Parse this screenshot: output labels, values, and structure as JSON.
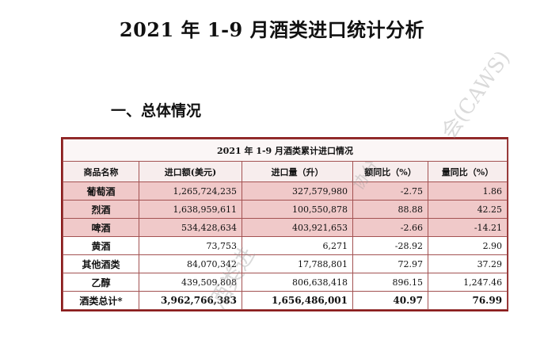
{
  "page": {
    "title": "2021 年 1-9 月酒类进口统计分析",
    "section_heading": "一、总体情况"
  },
  "table": {
    "caption": "2021 年 1-9 月酒类累计进口情况",
    "headers": [
      "商品名称",
      "进口额(美元)",
      "进口量（升）",
      "额同比（%）",
      "量同比（%）"
    ],
    "rows": [
      {
        "name": "葡萄酒",
        "value": "1,265,724,235",
        "volume": "327,579,980",
        "value_yoy": "-2.75",
        "volume_yoy": "1.86"
      },
      {
        "name": "烈酒",
        "value": "1,638,959,611",
        "volume": "100,550,878",
        "value_yoy": "88.88",
        "volume_yoy": "42.25"
      },
      {
        "name": "啤酒",
        "value": "534,428,634",
        "volume": "403,921,653",
        "value_yoy": "-2.66",
        "volume_yoy": "-14.21"
      },
      {
        "name": "黄酒",
        "value": "73,753",
        "volume": "6,271",
        "value_yoy": "-28.92",
        "volume_yoy": "2.90"
      },
      {
        "name": "其他酒类",
        "value": "84,070,342",
        "volume": "17,788,801",
        "value_yoy": "72.97",
        "volume_yoy": "37.29"
      },
      {
        "name": "乙醇",
        "value": "439,509,808",
        "volume": "806,638,418",
        "value_yoy": "896.15",
        "volume_yoy": "1,247.46"
      },
      {
        "name": "酒类总计*",
        "value": "3,962,766,383",
        "volume": "1,656,486,001",
        "value_yoy": "40.97",
        "volume_yoy": "76.99"
      }
    ]
  },
  "watermarks": [
    "会(CAWS)",
    "酒类进",
    "协分"
  ],
  "colors": {
    "shaded_row": "#f0c9c9",
    "border": "#8b1c1c"
  }
}
